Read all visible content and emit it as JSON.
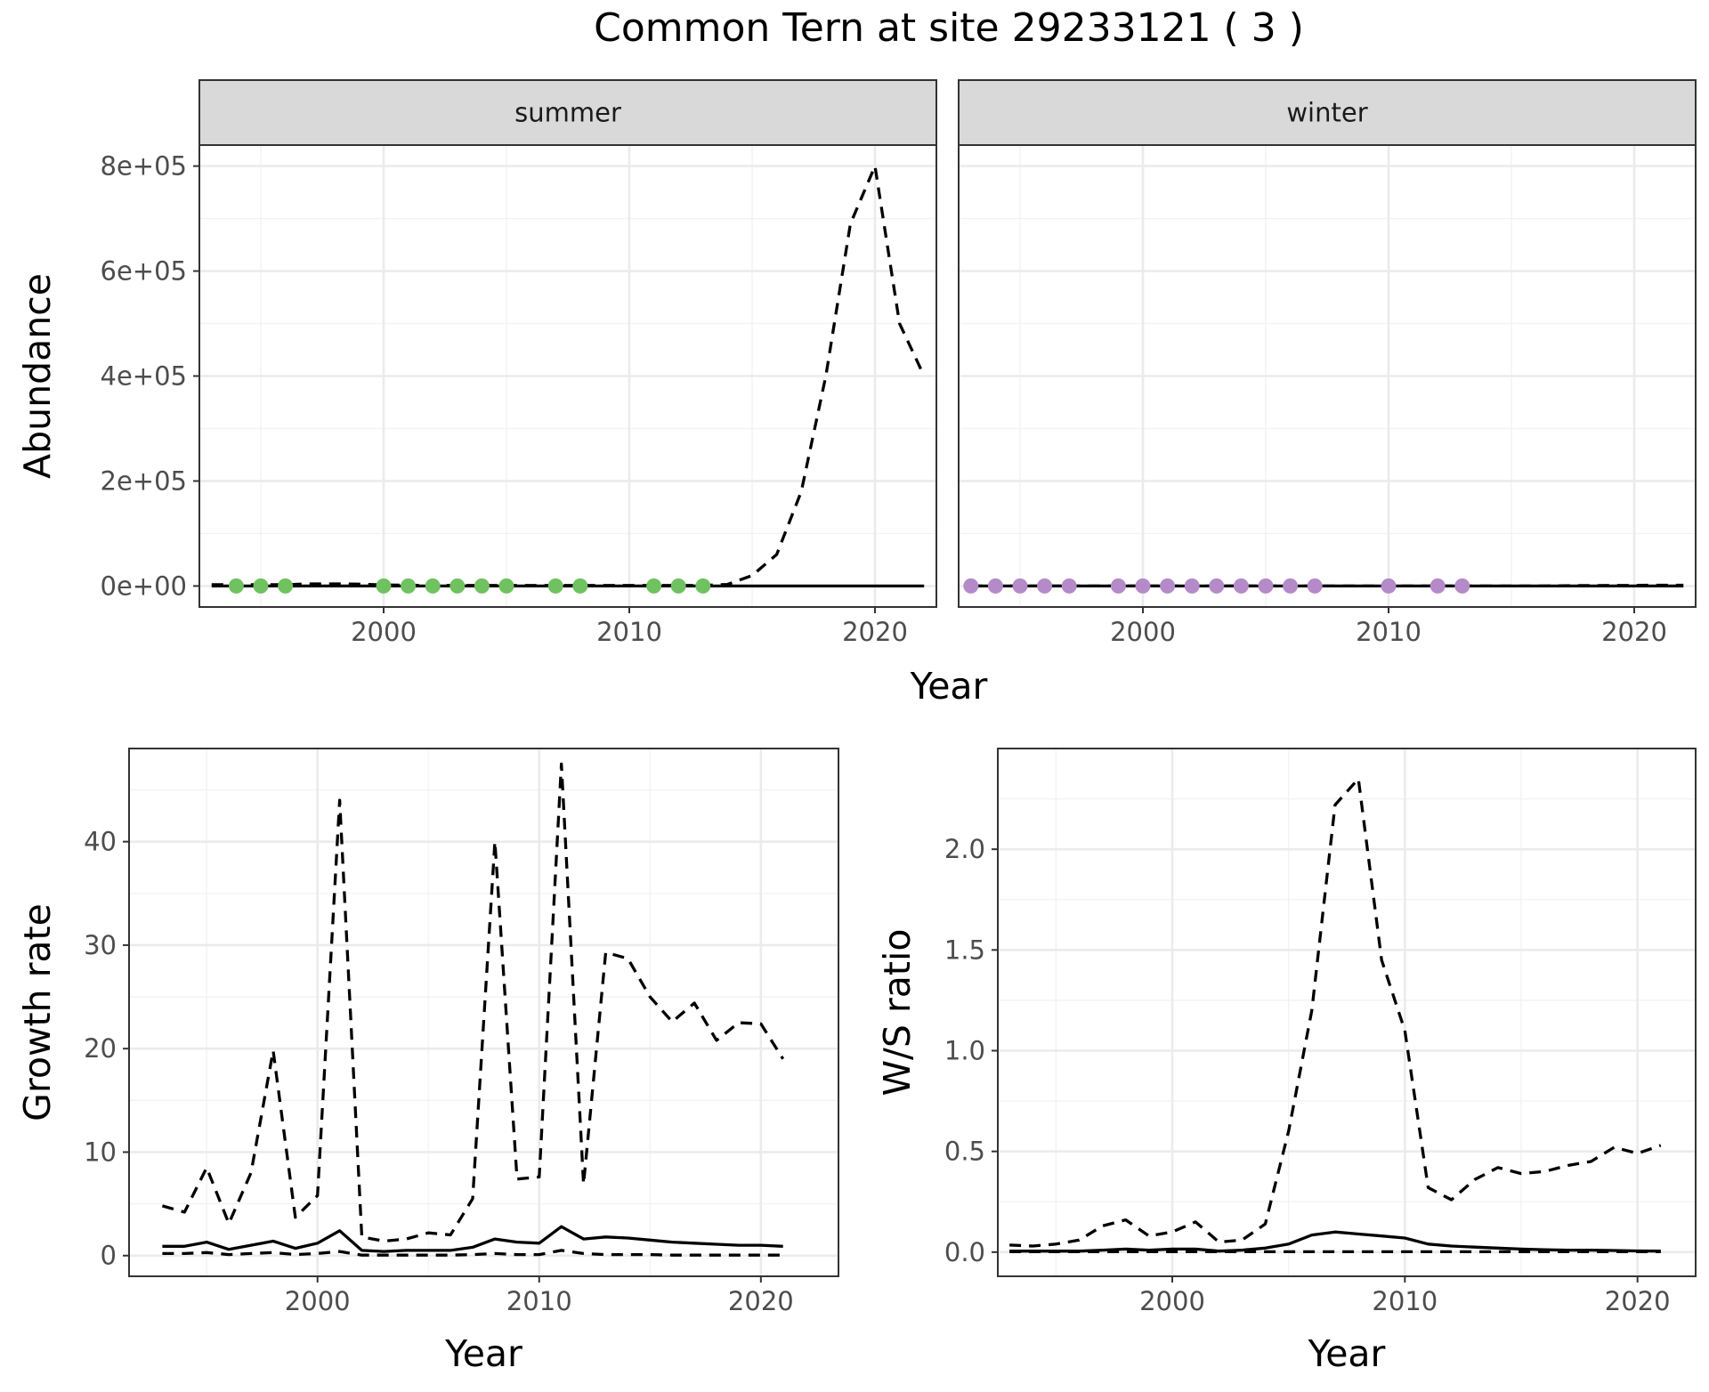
{
  "title": "Common Tern at site 29233121 ( 3 )",
  "colors": {
    "summer_points": "#70c160",
    "winter_points": "#b58ac8",
    "line": "#000000",
    "strip": "#d9d9d9"
  },
  "chart_data": [
    {
      "type": "line",
      "facet": "summer",
      "strip_label": "summer",
      "xlabel": "",
      "ylabel": "Abundance",
      "xlim": [
        1992.5,
        2022.5
      ],
      "ylim": [
        -40000,
        840000
      ],
      "x_ticks": [
        2000,
        2010,
        2020
      ],
      "y_ticks": [
        0,
        200000,
        400000,
        600000,
        800000
      ],
      "y_tick_labels": [
        "0e+00",
        "2e+05",
        "4e+05",
        "6e+05",
        "8e+05"
      ],
      "grid": true,
      "points": {
        "x": [
          1994,
          1995,
          1996,
          2000,
          2001,
          2002,
          2003,
          2004,
          2005,
          2007,
          2008,
          2011,
          2012,
          2013
        ],
        "y": [
          0,
          0,
          0,
          0,
          0,
          0,
          0,
          0,
          0,
          0,
          0,
          0,
          0,
          0
        ]
      },
      "series": [
        {
          "style": "solid",
          "x": [
            1993,
            1994,
            1995,
            1996,
            1997,
            1998,
            1999,
            2000,
            2001,
            2002,
            2003,
            2004,
            2005,
            2006,
            2007,
            2008,
            2009,
            2010,
            2011,
            2012,
            2013,
            2014,
            2015,
            2016,
            2017,
            2018,
            2019,
            2020,
            2021,
            2022
          ],
          "y": [
            0,
            0,
            0,
            0,
            0,
            0,
            0,
            0,
            0,
            0,
            0,
            0,
            0,
            0,
            0,
            0,
            0,
            0,
            0,
            0,
            0,
            0,
            0,
            0,
            0,
            0,
            0,
            0,
            0,
            0
          ]
        },
        {
          "style": "dashed",
          "x": [
            1993,
            1994,
            1995,
            1996,
            1997,
            1998,
            1999,
            2000,
            2001,
            2002,
            2003,
            2004,
            2005,
            2006,
            2007,
            2008,
            2009,
            2010,
            2011,
            2012,
            2013,
            2014,
            2015,
            2016,
            2017,
            2018,
            2019,
            2020,
            2021,
            2022
          ],
          "y": [
            2500,
            2500,
            2500,
            2500,
            4000,
            4000,
            3500,
            2000,
            1500,
            1000,
            1000,
            1000,
            1000,
            1000,
            1000,
            1000,
            1000,
            1000,
            1000,
            1000,
            1000,
            3000,
            20000,
            60000,
            180000,
            400000,
            690000,
            800000,
            500000,
            400000
          ]
        }
      ]
    },
    {
      "type": "line",
      "facet": "winter",
      "strip_label": "winter",
      "xlabel": "",
      "ylabel": "",
      "xlim": [
        1992.5,
        2022.5
      ],
      "ylim": [
        -40000,
        840000
      ],
      "x_ticks": [
        2000,
        2010,
        2020
      ],
      "grid": true,
      "points": {
        "x": [
          1993,
          1994,
          1995,
          1996,
          1997,
          1999,
          2000,
          2001,
          2002,
          2003,
          2004,
          2005,
          2006,
          2007,
          2010,
          2012,
          2013
        ],
        "y": [
          0,
          0,
          0,
          0,
          0,
          0,
          0,
          0,
          0,
          0,
          0,
          0,
          0,
          0,
          0,
          0,
          0
        ]
      },
      "series": [
        {
          "style": "solid",
          "x": [
            1993,
            1994,
            1995,
            1996,
            1997,
            1998,
            1999,
            2000,
            2001,
            2002,
            2003,
            2004,
            2005,
            2006,
            2007,
            2008,
            2009,
            2010,
            2011,
            2012,
            2013,
            2014,
            2015,
            2016,
            2017,
            2018,
            2019,
            2020,
            2021,
            2022
          ],
          "y": [
            0,
            0,
            0,
            0,
            0,
            0,
            0,
            0,
            0,
            0,
            0,
            0,
            0,
            0,
            0,
            0,
            0,
            0,
            0,
            0,
            0,
            0,
            0,
            0,
            0,
            0,
            0,
            0,
            0,
            0
          ]
        },
        {
          "style": "dashed",
          "x": [
            1993,
            1994,
            1995,
            1996,
            1997,
            1998,
            1999,
            2000,
            2001,
            2002,
            2003,
            2004,
            2005,
            2006,
            2007,
            2008,
            2009,
            2010,
            2011,
            2012,
            2013,
            2014,
            2015,
            2016,
            2017,
            2018,
            2019,
            2020,
            2021,
            2022
          ],
          "y": [
            0,
            0,
            0,
            0,
            0,
            0,
            0,
            0,
            0,
            0,
            0,
            0,
            0,
            0,
            0,
            0,
            0,
            0,
            0,
            0,
            0,
            0,
            0,
            0,
            500,
            800,
            1000,
            1200,
            1500,
            1500
          ]
        }
      ]
    },
    {
      "type": "line",
      "xlabel": "Year",
      "ylabel": "Growth rate",
      "xlim": [
        1991.5,
        2023.5
      ],
      "ylim": [
        -2,
        49
      ],
      "x_ticks": [
        2000,
        2010,
        2020
      ],
      "y_ticks": [
        0,
        10,
        20,
        30,
        40
      ],
      "grid": true,
      "series": [
        {
          "style": "solid",
          "x": [
            1993,
            1994,
            1995,
            1996,
            1997,
            1998,
            1999,
            2000,
            2001,
            2002,
            2003,
            2004,
            2005,
            2006,
            2007,
            2008,
            2009,
            2010,
            2011,
            2012,
            2013,
            2014,
            2015,
            2016,
            2017,
            2018,
            2019,
            2020,
            2021
          ],
          "y": [
            0.9,
            0.9,
            1.3,
            0.6,
            1.0,
            1.4,
            0.7,
            1.2,
            2.4,
            0.5,
            0.4,
            0.5,
            0.5,
            0.5,
            0.8,
            1.6,
            1.3,
            1.2,
            2.8,
            1.6,
            1.8,
            1.7,
            1.5,
            1.3,
            1.2,
            1.1,
            1.0,
            1.0,
            0.9
          ]
        },
        {
          "style": "dashed",
          "x": [
            1993,
            1994,
            1995,
            1996,
            1997,
            1998,
            1999,
            2000,
            2001,
            2002,
            2003,
            2004,
            2005,
            2006,
            2007,
            2008,
            2009,
            2010,
            2011,
            2012,
            2013,
            2014,
            2015,
            2016,
            2017,
            2018,
            2019,
            2020,
            2021
          ],
          "y": [
            4.8,
            4.2,
            8.5,
            3.1,
            8.0,
            19.8,
            3.7,
            5.8,
            44.0,
            1.8,
            1.4,
            1.6,
            2.2,
            2.0,
            5.5,
            40.0,
            7.4,
            7.6,
            47.5,
            6.9,
            29.3,
            28.7,
            25.0,
            22.6,
            24.4,
            20.8,
            22.5,
            22.4,
            19.0
          ]
        },
        {
          "style": "dashed",
          "x": [
            1993,
            1994,
            1995,
            1996,
            1997,
            1998,
            1999,
            2000,
            2001,
            2002,
            2003,
            2004,
            2005,
            2006,
            2007,
            2008,
            2009,
            2010,
            2011,
            2012,
            2013,
            2014,
            2015,
            2016,
            2017,
            2018,
            2019,
            2020,
            2021
          ],
          "y": [
            0.2,
            0.2,
            0.3,
            0.1,
            0.2,
            0.3,
            0.1,
            0.2,
            0.4,
            0.05,
            0.05,
            0.05,
            0.05,
            0.05,
            0.1,
            0.2,
            0.1,
            0.1,
            0.5,
            0.2,
            0.1,
            0.1,
            0.1,
            0.05,
            0.05,
            0.05,
            0.05,
            0.05,
            0.05
          ]
        }
      ]
    },
    {
      "type": "line",
      "xlabel": "Year",
      "ylabel": "W/S ratio",
      "xlim": [
        1992.5,
        2022.5
      ],
      "ylim": [
        -0.12,
        2.5
      ],
      "x_ticks": [
        2000,
        2010,
        2020
      ],
      "y_ticks": [
        0.0,
        0.5,
        1.0,
        1.5,
        2.0
      ],
      "y_tick_labels": [
        "0.0",
        "0.5",
        "1.0",
        "1.5",
        "2.0"
      ],
      "grid": true,
      "series": [
        {
          "style": "solid",
          "x": [
            1993,
            1994,
            1995,
            1996,
            1997,
            1998,
            1999,
            2000,
            2001,
            2002,
            2003,
            2004,
            2005,
            2006,
            2007,
            2008,
            2009,
            2010,
            2011,
            2012,
            2013,
            2014,
            2015,
            2016,
            2017,
            2018,
            2019,
            2020,
            2021
          ],
          "y": [
            0.005,
            0.005,
            0.005,
            0.005,
            0.01,
            0.015,
            0.01,
            0.015,
            0.015,
            0.005,
            0.01,
            0.02,
            0.04,
            0.085,
            0.1,
            0.09,
            0.08,
            0.07,
            0.04,
            0.03,
            0.025,
            0.02,
            0.015,
            0.012,
            0.01,
            0.01,
            0.008,
            0.006,
            0.005
          ]
        },
        {
          "style": "dashed",
          "x": [
            1993,
            1994,
            1995,
            1996,
            1997,
            1998,
            1999,
            2000,
            2001,
            2002,
            2003,
            2004,
            2005,
            2006,
            2007,
            2008,
            2009,
            2010,
            2011,
            2012,
            2013,
            2014,
            2015,
            2016,
            2017,
            2018,
            2019,
            2020,
            2021
          ],
          "y": [
            0.035,
            0.03,
            0.04,
            0.06,
            0.13,
            0.16,
            0.08,
            0.1,
            0.15,
            0.05,
            0.06,
            0.14,
            0.6,
            1.2,
            2.22,
            2.35,
            1.45,
            1.1,
            0.32,
            0.26,
            0.36,
            0.42,
            0.39,
            0.4,
            0.43,
            0.45,
            0.52,
            0.49,
            0.53
          ]
        },
        {
          "style": "dashed",
          "x": [
            1993,
            1994,
            1995,
            1996,
            1997,
            1998,
            1999,
            2000,
            2001,
            2002,
            2003,
            2004,
            2005,
            2006,
            2007,
            2008,
            2009,
            2010,
            2011,
            2012,
            2013,
            2014,
            2015,
            2016,
            2017,
            2018,
            2019,
            2020,
            2021
          ],
          "y": [
            0.002,
            0.002,
            0.002,
            0.002,
            0.002,
            0.002,
            0.002,
            0.002,
            0.002,
            0.002,
            0.002,
            0.002,
            0.002,
            0.002,
            0.002,
            0.002,
            0.002,
            0.002,
            0.002,
            0.002,
            0.002,
            0.002,
            0.002,
            0.002,
            0.002,
            0.002,
            0.002,
            0.002,
            0.002
          ]
        }
      ]
    }
  ],
  "shared_labels": {
    "top_xlabel": "Year"
  }
}
